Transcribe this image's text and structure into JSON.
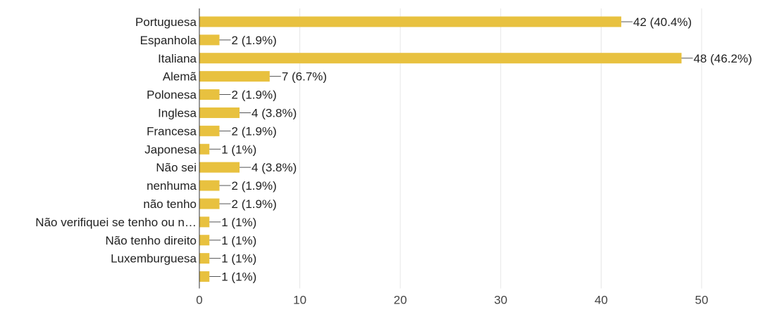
{
  "chart_data": {
    "type": "bar",
    "orientation": "horizontal",
    "title": "",
    "xlabel": "",
    "ylabel": "",
    "xlim": [
      0,
      50
    ],
    "xticks": [
      "0",
      "10",
      "20",
      "30",
      "40",
      "50"
    ],
    "grid": true,
    "bar_color": "#e8c13f",
    "categories": [
      "Portuguesa",
      "Espanhola",
      "Italiana",
      "Alemã",
      "Polonesa",
      "Inglesa",
      "Francesa",
      "Japonesa",
      "Não sei",
      "nenhuma",
      "não tenho",
      "Não verifiquei se tenho ou n…",
      "Não tenho direito",
      "Luxemburguesa",
      ""
    ],
    "values": [
      42,
      2,
      48,
      7,
      2,
      4,
      2,
      1,
      4,
      2,
      2,
      1,
      1,
      1,
      1
    ],
    "value_labels": [
      "42 (40.4%)",
      "2 (1.9%)",
      "48 (46.2%)",
      "7 (6.7%)",
      "2 (1.9%)",
      "4 (3.8%)",
      "2 (1.9%)",
      "1 (1%)",
      "4 (3.8%)",
      "2 (1.9%)",
      "2 (1.9%)",
      "1 (1%)",
      "1 (1%)",
      "1 (1%)",
      "1 (1%)"
    ]
  }
}
